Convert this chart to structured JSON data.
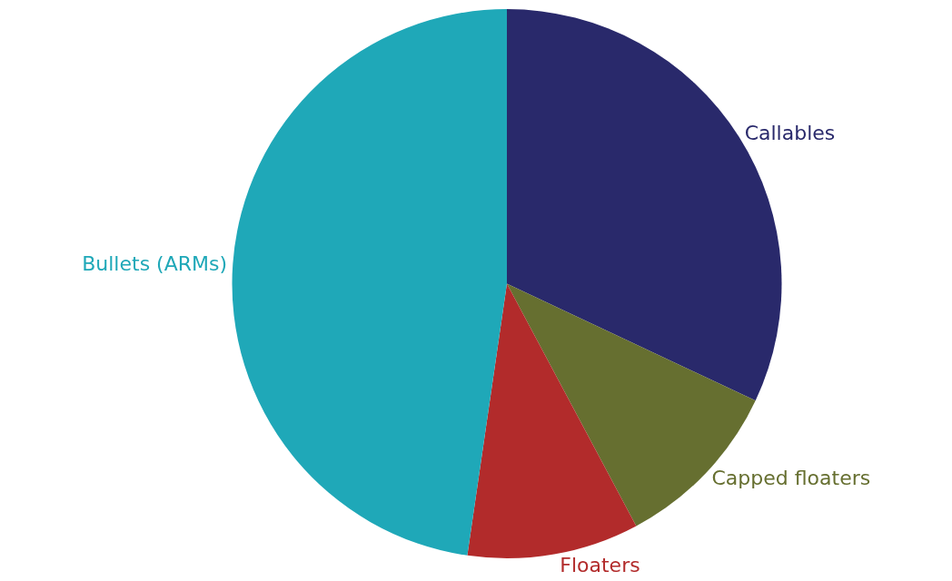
{
  "chart_data": {
    "type": "pie",
    "categories": [
      "Callables",
      "Capped floaters",
      "Floaters",
      "Bullets (ARMs)"
    ],
    "values": [
      32.0,
      10.2,
      10.1,
      47.7
    ],
    "colors": [
      "#29296b",
      "#666f30",
      "#b22b2b",
      "#1fa8b8"
    ],
    "legend": false
  }
}
